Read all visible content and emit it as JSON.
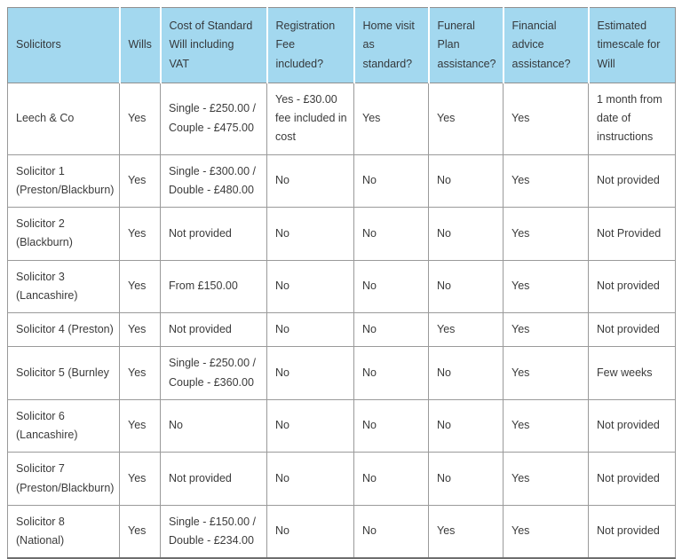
{
  "table": {
    "columns": [
      "Solicitors",
      "Wills",
      "Cost of Standard\nWill including\nVAT",
      "Registration\nFee\nincluded?",
      "Home visit\nas\nstandard?",
      "Funeral\nPlan\nassistance?",
      "Financial\nadvice\nassistance?",
      "Estimated\ntimescale for\nWill"
    ],
    "rows": [
      {
        "cells": [
          "Leech & Co",
          "Yes",
          "Single - £250.00 /\nCouple - £475.00",
          "Yes - £30.00\nfee included in\ncost",
          "Yes",
          "Yes",
          "Yes",
          "1 month from\ndate of\ninstructions"
        ]
      },
      {
        "cells": [
          "Solicitor 1\n(Preston/Blackburn)",
          "Yes",
          "Single - £300.00 /\nDouble - £480.00",
          "No",
          "No",
          "No",
          "Yes",
          "Not provided"
        ]
      },
      {
        "cells": [
          "Solicitor 2\n(Blackburn)",
          "Yes",
          "Not provided",
          "No",
          "No",
          "No",
          "Yes",
          "Not Provided"
        ]
      },
      {
        "cells": [
          "Solicitor 3\n(Lancashire)",
          "Yes",
          "From £150.00",
          "No",
          "No",
          "No",
          "Yes",
          "Not provided"
        ]
      },
      {
        "cells": [
          "Solicitor 4 (Preston)",
          "Yes",
          "Not provided",
          "No",
          "No",
          "Yes",
          "Yes",
          "Not provided"
        ]
      },
      {
        "cells": [
          "Solicitor 5 (Burnley",
          "Yes",
          "Single - £250.00 /\nCouple - £360.00",
          "No",
          "No",
          "No",
          "Yes",
          "Few weeks"
        ]
      },
      {
        "cells": [
          "Solicitor 6\n(Lancashire)",
          "Yes",
          "No",
          "No",
          "No",
          "No",
          "Yes",
          "Not provided"
        ]
      },
      {
        "cells": [
          "Solicitor 7\n(Preston/Blackburn)",
          "Yes",
          "Not provided",
          "No",
          "No",
          "No",
          "Yes",
          "Not provided"
        ]
      },
      {
        "cells": [
          "Solicitor 8\n(National)",
          "Yes",
          "Single - £150.00 /\nDouble - £234.00",
          "No",
          "No",
          "Yes",
          "Yes",
          "Not provided"
        ]
      }
    ],
    "colors": {
      "header_bg": "#a3d8ef",
      "body_bg": "#ffffff",
      "border": "#8f8f8f",
      "text": "#3b3b3b"
    }
  }
}
